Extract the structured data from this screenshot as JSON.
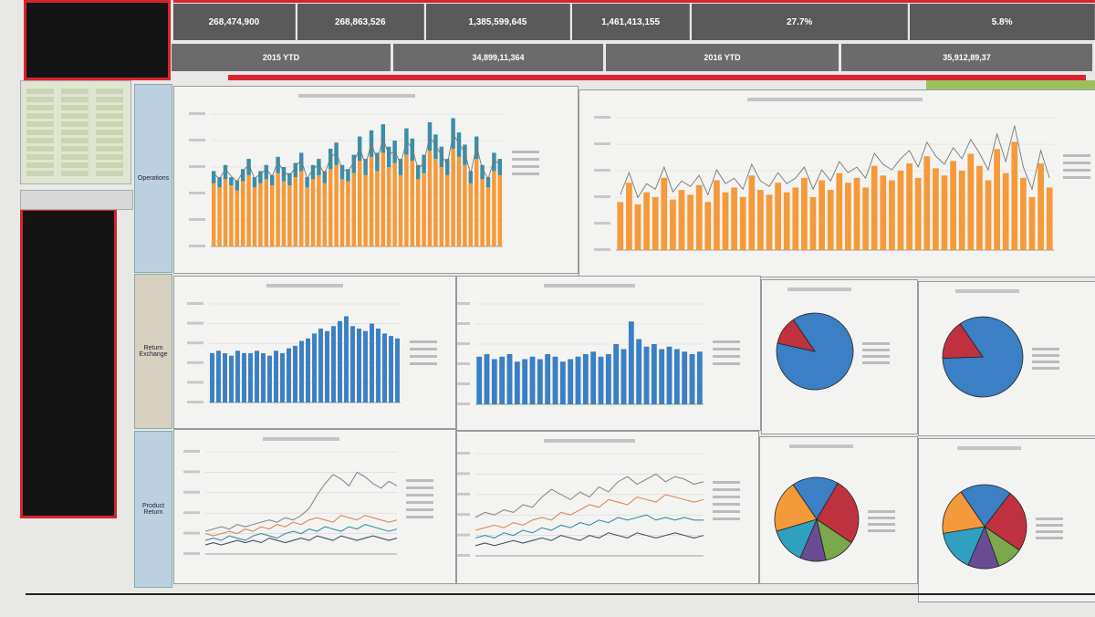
{
  "kpi_top": [
    "268,474,900",
    "268,863,526",
    "1,385,599,645",
    "1,461,413,155",
    "27.7%",
    "5.8%"
  ],
  "kpi_sub": [
    "2015 YTD",
    "34,899,11,364",
    "2016 YTD",
    "35,912,89,37"
  ],
  "side_tabs": [
    "Operations",
    "Return Exchange",
    "Product Return"
  ],
  "colors": {
    "orange": "#f59a3a",
    "teal": "#3a8fa8",
    "blue": "#3b7fc4",
    "red": "#c0323f",
    "grey": "#8a8a8a"
  },
  "chart_data": [
    {
      "type": "bar",
      "id": "chart1",
      "series": [
        {
          "values": [
            62,
            58,
            66,
            60,
            55,
            64,
            70,
            58,
            62,
            66,
            60,
            72,
            64,
            60,
            68,
            74,
            58,
            66,
            70,
            62,
            76,
            80,
            66,
            64,
            72,
            84,
            70,
            88,
            74,
            92,
            78,
            82,
            70,
            90,
            84,
            66,
            72,
            94,
            86,
            78,
            70,
            96,
            88,
            80,
            62,
            86,
            66,
            58,
            74,
            70
          ]
        },
        {
          "values": [
            12,
            10,
            14,
            8,
            10,
            12,
            16,
            10,
            12,
            14,
            10,
            16,
            14,
            12,
            14,
            18,
            10,
            14,
            16,
            12,
            20,
            22,
            14,
            12,
            18,
            24,
            16,
            26,
            18,
            28,
            20,
            22,
            16,
            26,
            22,
            14,
            18,
            28,
            24,
            20,
            16,
            30,
            24,
            20,
            12,
            22,
            14,
            10,
            18,
            16
          ]
        }
      ]
    },
    {
      "type": "bar",
      "id": "chart2",
      "series": [
        {
          "values": [
            40,
            56,
            38,
            48,
            44,
            60,
            42,
            50,
            46,
            54,
            40,
            58,
            48,
            52,
            44,
            62,
            50,
            46,
            56,
            48,
            52,
            60,
            44,
            58,
            50,
            64,
            56,
            60,
            52,
            70,
            62,
            58,
            66,
            72,
            60,
            78,
            68,
            62,
            74,
            66,
            80,
            70,
            58,
            84,
            64,
            90,
            60,
            44,
            72,
            52
          ]
        }
      ]
    },
    {
      "type": "bar",
      "id": "chart3",
      "series": [
        {
          "values": [
            40,
            42,
            40,
            38,
            42,
            40,
            40,
            42,
            40,
            38,
            42,
            40,
            44,
            46,
            50,
            52,
            56,
            60,
            58,
            62,
            66,
            70,
            62,
            60,
            58,
            64,
            60,
            56,
            54,
            52
          ]
        }
      ]
    },
    {
      "type": "bar",
      "id": "chart4",
      "series": [
        {
          "values": [
            38,
            40,
            36,
            38,
            40,
            34,
            36,
            38,
            36,
            40,
            38,
            34,
            36,
            38,
            40,
            42,
            38,
            40,
            48,
            44,
            66,
            52,
            46,
            48,
            44,
            46,
            44,
            42,
            40,
            42
          ]
        }
      ]
    },
    {
      "type": "line",
      "id": "chart5",
      "series": [
        {
          "values": [
            20,
            22,
            24,
            22,
            26,
            24,
            26,
            28,
            30,
            28,
            32,
            30,
            34,
            40,
            52,
            62,
            70,
            66,
            60,
            72,
            68,
            62,
            58,
            64,
            60
          ]
        },
        {
          "values": [
            18,
            16,
            18,
            20,
            18,
            22,
            20,
            24,
            22,
            26,
            24,
            28,
            26,
            30,
            32,
            30,
            28,
            34,
            32,
            30,
            34,
            32,
            30,
            28,
            30
          ]
        },
        {
          "values": [
            12,
            14,
            12,
            16,
            14,
            12,
            16,
            18,
            16,
            14,
            18,
            20,
            18,
            22,
            20,
            24,
            22,
            20,
            24,
            22,
            26,
            24,
            22,
            20,
            22
          ]
        },
        {
          "values": [
            8,
            10,
            8,
            10,
            12,
            10,
            12,
            10,
            14,
            12,
            10,
            12,
            14,
            12,
            16,
            14,
            12,
            16,
            14,
            12,
            14,
            16,
            14,
            12,
            14
          ]
        }
      ]
    },
    {
      "type": "line",
      "id": "chart6",
      "series": [
        {
          "values": [
            30,
            34,
            32,
            36,
            34,
            40,
            38,
            46,
            52,
            48,
            44,
            50,
            46,
            54,
            50,
            58,
            62,
            56,
            60,
            64,
            58,
            62,
            60,
            56,
            58
          ]
        },
        {
          "values": [
            20,
            22,
            24,
            22,
            26,
            24,
            28,
            30,
            28,
            34,
            32,
            36,
            40,
            38,
            44,
            42,
            40,
            46,
            44,
            42,
            48,
            46,
            44,
            42,
            44
          ]
        },
        {
          "values": [
            14,
            16,
            14,
            18,
            16,
            20,
            18,
            22,
            20,
            24,
            22,
            26,
            24,
            28,
            26,
            30,
            28,
            30,
            32,
            28,
            30,
            28,
            30,
            28,
            28
          ]
        },
        {
          "values": [
            8,
            10,
            8,
            10,
            12,
            10,
            12,
            14,
            12,
            16,
            14,
            12,
            16,
            14,
            18,
            16,
            14,
            18,
            16,
            14,
            16,
            18,
            16,
            14,
            16
          ]
        }
      ]
    },
    {
      "type": "pie",
      "id": "pie1",
      "values": [
        88,
        12
      ]
    },
    {
      "type": "pie",
      "id": "pie2",
      "values": [
        84,
        16
      ]
    },
    {
      "type": "pie",
      "id": "pie3",
      "values": [
        18,
        26,
        12,
        10,
        14,
        20
      ]
    },
    {
      "type": "pie",
      "id": "pie4",
      "values": [
        20,
        24,
        10,
        12,
        16,
        18
      ]
    }
  ]
}
